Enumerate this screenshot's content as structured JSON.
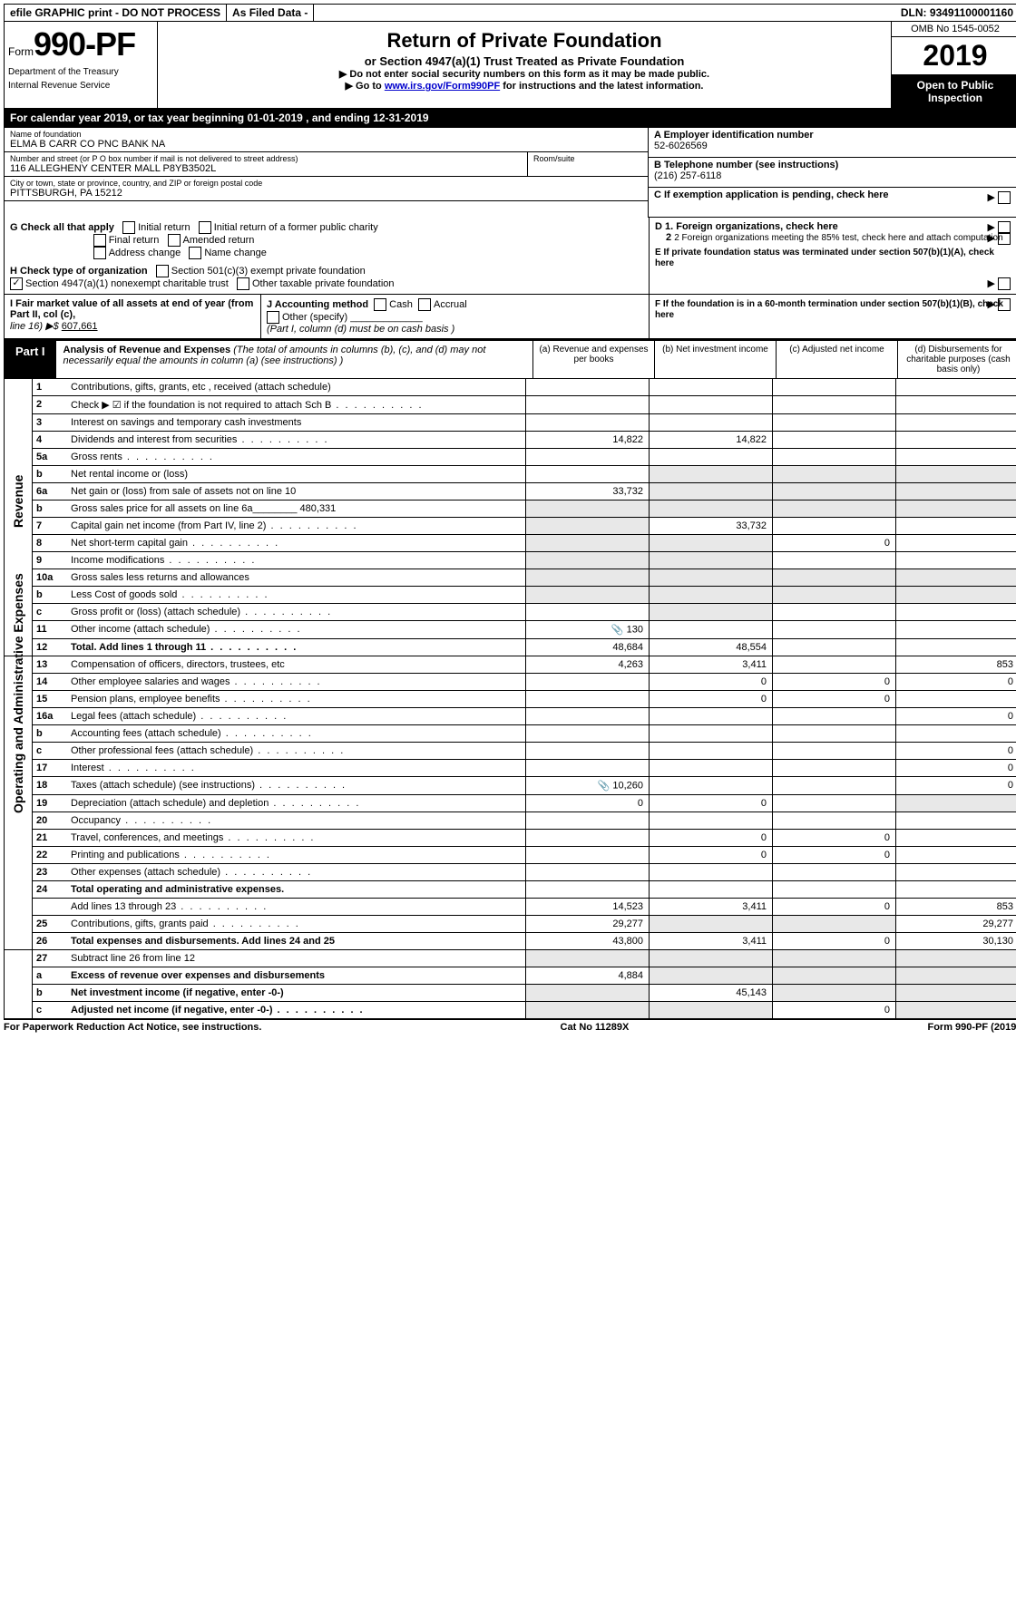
{
  "topbar": {
    "efile": "efile GRAPHIC print - DO NOT PROCESS",
    "asfiled": "As Filed Data -",
    "dln_label": "DLN:",
    "dln": "93491100001160"
  },
  "header": {
    "form_prefix": "Form",
    "form_no": "990-PF",
    "dept1": "Department of the Treasury",
    "dept2": "Internal Revenue Service",
    "title": "Return of Private Foundation",
    "subtitle": "or Section 4947(a)(1) Trust Treated as Private Foundation",
    "note1": "▶ Do not enter social security numbers on this form as it may be made public.",
    "note2_pre": "▶ Go to ",
    "note2_link": "www.irs.gov/Form990PF",
    "note2_post": " for instructions and the latest information.",
    "omb": "OMB No 1545-0052",
    "year": "2019",
    "open": "Open to Public Inspection"
  },
  "calyear": {
    "text_pre": "For calendar year 2019, or tax year beginning ",
    "begin": "01-01-2019",
    "mid": " , and ending ",
    "end": "12-31-2019"
  },
  "info": {
    "name_lbl": "Name of foundation",
    "name": "ELMA B CARR CO PNC BANK NA",
    "street_lbl": "Number and street (or P O  box number if mail is not delivered to street address)",
    "street": "116 ALLEGHENY CENTER MALL P8YB3502L",
    "room_lbl": "Room/suite",
    "city_lbl": "City or town, state or province, country, and ZIP or foreign postal code",
    "city": "PITTSBURGH, PA  15212",
    "a_lbl": "A Employer identification number",
    "a_val": "52-6026569",
    "b_lbl": "B Telephone number (see instructions)",
    "b_val": "(216) 257-6118",
    "c_lbl": "C If exemption application is pending, check here"
  },
  "g": {
    "label": "G Check all that apply",
    "opts": [
      "Initial return",
      "Initial return of a former public charity",
      "Final return",
      "Amended return",
      "Address change",
      "Name change"
    ]
  },
  "d": {
    "d1": "D 1. Foreign organizations, check here",
    "d2": "2 Foreign organizations meeting the 85% test, check here and attach computation",
    "e": "E  If private foundation status was terminated under section 507(b)(1)(A), check here"
  },
  "h": {
    "label": "H Check type of organization",
    "o1": "Section 501(c)(3) exempt private foundation",
    "o2": "Section 4947(a)(1) nonexempt charitable trust",
    "o3": "Other taxable private foundation"
  },
  "i": {
    "label": "I Fair market value of all assets at end of year (from Part II, col  (c),",
    "line16": "line 16) ▶$ ",
    "val": "607,661"
  },
  "j": {
    "label": "J Accounting method",
    "cash": "Cash",
    "accrual": "Accrual",
    "other": "Other (specify)",
    "note": "(Part I, column (d) must be on cash basis )"
  },
  "f": {
    "text": "F  If the foundation is in a 60-month termination under section 507(b)(1)(B), check here"
  },
  "part1": {
    "label": "Part I",
    "title": "Analysis of Revenue and Expenses",
    "note": "(The total of amounts in columns (b), (c), and (d) may not necessarily equal the amounts in column (a) (see instructions) )",
    "col_a": "(a) Revenue and expenses per books",
    "col_b": "(b) Net investment income",
    "col_c": "(c) Adjusted net income",
    "col_d": "(d) Disbursements for charitable purposes (cash basis only)"
  },
  "side": {
    "revenue": "Revenue",
    "expenses": "Operating and Administrative Expenses"
  },
  "rows": [
    {
      "ln": "1",
      "desc": "Contributions, gifts, grants, etc , received (attach schedule)",
      "a": "",
      "b": "",
      "c": "",
      "d": ""
    },
    {
      "ln": "2",
      "desc": "Check ▶ ☑ if the foundation is not required to attach Sch B",
      "dots": true,
      "a": "",
      "b": "",
      "c": "",
      "d": ""
    },
    {
      "ln": "3",
      "desc": "Interest on savings and temporary cash investments",
      "a": "",
      "b": "",
      "c": "",
      "d": ""
    },
    {
      "ln": "4",
      "desc": "Dividends and interest from securities",
      "dots": true,
      "a": "14,822",
      "b": "14,822",
      "c": "",
      "d": ""
    },
    {
      "ln": "5a",
      "desc": "Gross rents",
      "dots": true,
      "a": "",
      "b": "",
      "c": "",
      "d": ""
    },
    {
      "ln": "b",
      "desc": "Net rental income or (loss)",
      "a": "",
      "b": "",
      "c": "",
      "d": "",
      "shade_bcd": true
    },
    {
      "ln": "6a",
      "desc": "Net gain or (loss) from sale of assets not on line 10",
      "a": "33,732",
      "b": "",
      "c": "",
      "d": "",
      "shade_bcd": true
    },
    {
      "ln": "b",
      "desc": "Gross sales price for all assets on line 6a________ 480,331",
      "a": "",
      "b": "",
      "c": "",
      "d": "",
      "shade_all": true
    },
    {
      "ln": "7",
      "desc": "Capital gain net income (from Part IV, line 2)",
      "dots": true,
      "a": "",
      "b": "33,732",
      "c": "",
      "d": "",
      "shade_a": true
    },
    {
      "ln": "8",
      "desc": "Net short-term capital gain",
      "dots": true,
      "a": "",
      "b": "",
      "c": "0",
      "d": "",
      "shade_ab": true
    },
    {
      "ln": "9",
      "desc": "Income modifications",
      "dots": true,
      "a": "",
      "b": "",
      "c": "",
      "d": "",
      "shade_ab": true
    },
    {
      "ln": "10a",
      "desc": "Gross sales less returns and allowances",
      "a": "",
      "b": "",
      "c": "",
      "d": "",
      "shade_all": true
    },
    {
      "ln": "b",
      "desc": "Less  Cost of goods sold",
      "dots": true,
      "a": "",
      "b": "",
      "c": "",
      "d": "",
      "shade_all": true
    },
    {
      "ln": "c",
      "desc": "Gross profit or (loss) (attach schedule)",
      "dots": true,
      "a": "",
      "b": "",
      "c": "",
      "d": "",
      "shade_b": true
    },
    {
      "ln": "11",
      "desc": "Other income (attach schedule)",
      "dots": true,
      "a": "130",
      "b": "",
      "c": "",
      "d": "",
      "icon": true
    },
    {
      "ln": "12",
      "desc": "Total. Add lines 1 through 11",
      "dots": true,
      "bold": true,
      "a": "48,684",
      "b": "48,554",
      "c": "",
      "d": ""
    }
  ],
  "exp_rows": [
    {
      "ln": "13",
      "desc": "Compensation of officers, directors, trustees, etc",
      "a": "4,263",
      "b": "3,411",
      "c": "",
      "d": "853"
    },
    {
      "ln": "14",
      "desc": "Other employee salaries and wages",
      "dots": true,
      "a": "",
      "b": "0",
      "c": "0",
      "d": "0"
    },
    {
      "ln": "15",
      "desc": "Pension plans, employee benefits",
      "dots": true,
      "a": "",
      "b": "0",
      "c": "0",
      "d": ""
    },
    {
      "ln": "16a",
      "desc": "Legal fees (attach schedule)",
      "dots": true,
      "a": "",
      "b": "",
      "c": "",
      "d": "0"
    },
    {
      "ln": "b",
      "desc": "Accounting fees (attach schedule)",
      "dots": true,
      "a": "",
      "b": "",
      "c": "",
      "d": ""
    },
    {
      "ln": "c",
      "desc": "Other professional fees (attach schedule)",
      "dots": true,
      "a": "",
      "b": "",
      "c": "",
      "d": "0"
    },
    {
      "ln": "17",
      "desc": "Interest",
      "dots": true,
      "a": "",
      "b": "",
      "c": "",
      "d": "0"
    },
    {
      "ln": "18",
      "desc": "Taxes (attach schedule) (see instructions)",
      "dots": true,
      "a": "10,260",
      "b": "",
      "c": "",
      "d": "0",
      "icon": true
    },
    {
      "ln": "19",
      "desc": "Depreciation (attach schedule) and depletion",
      "dots": true,
      "a": "0",
      "b": "0",
      "c": "",
      "d": "",
      "shade_d": true
    },
    {
      "ln": "20",
      "desc": "Occupancy",
      "dots": true,
      "a": "",
      "b": "",
      "c": "",
      "d": ""
    },
    {
      "ln": "21",
      "desc": "Travel, conferences, and meetings",
      "dots": true,
      "a": "",
      "b": "0",
      "c": "0",
      "d": ""
    },
    {
      "ln": "22",
      "desc": "Printing and publications",
      "dots": true,
      "a": "",
      "b": "0",
      "c": "0",
      "d": ""
    },
    {
      "ln": "23",
      "desc": "Other expenses (attach schedule)",
      "dots": true,
      "a": "",
      "b": "",
      "c": "",
      "d": ""
    },
    {
      "ln": "24",
      "desc": "Total operating and administrative expenses.",
      "bold": true,
      "a": "",
      "b": "",
      "c": "",
      "d": "",
      "noborder": true
    },
    {
      "ln": "",
      "desc": "Add lines 13 through 23",
      "dots": true,
      "a": "14,523",
      "b": "3,411",
      "c": "0",
      "d": "853"
    },
    {
      "ln": "25",
      "desc": "Contributions, gifts, grants paid",
      "dots": true,
      "a": "29,277",
      "b": "",
      "c": "",
      "d": "29,277",
      "shade_bc": true
    },
    {
      "ln": "26",
      "desc": "Total expenses and disbursements. Add lines 24 and 25",
      "bold": true,
      "a": "43,800",
      "b": "3,411",
      "c": "0",
      "d": "30,130"
    }
  ],
  "bottom_rows": [
    {
      "ln": "27",
      "desc": "Subtract line 26 from line 12",
      "a": "",
      "b": "",
      "c": "",
      "d": "",
      "shade_all": true
    },
    {
      "ln": "a",
      "desc": "Excess of revenue over expenses and disbursements",
      "bold": true,
      "a": "4,884",
      "b": "",
      "c": "",
      "d": "",
      "shade_bcd": true
    },
    {
      "ln": "b",
      "desc": "Net investment income (if negative, enter -0-)",
      "bold": true,
      "a": "",
      "b": "45,143",
      "c": "",
      "d": "",
      "shade_a": true,
      "shade_cd": true
    },
    {
      "ln": "c",
      "desc": "Adjusted net income (if negative, enter -0-)",
      "bold": true,
      "dots": true,
      "a": "",
      "b": "",
      "c": "0",
      "d": "",
      "shade_ab": true,
      "shade_d": true
    }
  ],
  "footer": {
    "left": "For Paperwork Reduction Act Notice, see instructions.",
    "mid": "Cat  No  11289X",
    "right": "Form 990-PF (2019)"
  }
}
